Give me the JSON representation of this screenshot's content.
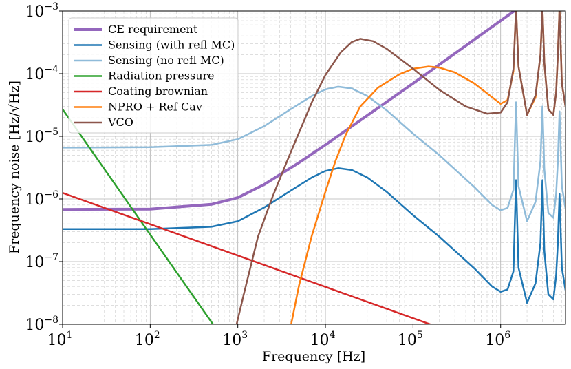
{
  "chart_data": {
    "type": "line",
    "xscale": "log",
    "yscale": "log",
    "xlabel": "Frequency [Hz]",
    "ylabel": "Frequency noise [Hz/√Hz]",
    "xlim": [
      10,
      5500000
    ],
    "ylim": [
      1e-08,
      0.001
    ],
    "grid": true,
    "legend_location": "upper left",
    "x_ticks": [
      {
        "base": "10",
        "exp": "1"
      },
      {
        "base": "10",
        "exp": "2"
      },
      {
        "base": "10",
        "exp": "3"
      },
      {
        "base": "10",
        "exp": "4"
      },
      {
        "base": "10",
        "exp": "5"
      },
      {
        "base": "10",
        "exp": "6"
      }
    ],
    "y_ticks": [
      {
        "base": "10",
        "exp": "−8"
      },
      {
        "base": "10",
        "exp": "−7"
      },
      {
        "base": "10",
        "exp": "−6"
      },
      {
        "base": "10",
        "exp": "−5"
      },
      {
        "base": "10",
        "exp": "−4"
      },
      {
        "base": "10",
        "exp": "−3"
      }
    ],
    "series": [
      {
        "name": "CE requirement",
        "color": "#9467bd",
        "linewidth": 4,
        "x": [
          10,
          100,
          500,
          1000,
          2000,
          5000,
          10000,
          100000,
          1000000,
          1500000
        ],
        "y": [
          6.8e-07,
          6.9e-07,
          8.2e-07,
          1.05e-06,
          1.7e-06,
          3.8e-06,
          7.3e-06,
          7e-05,
          0.0007,
          0.00105
        ]
      },
      {
        "name": "Sensing (with refl MC)",
        "color": "#1f77b4",
        "linewidth": 2.5,
        "x": [
          10,
          100,
          500,
          1000,
          2000,
          4000,
          7000,
          10000,
          14000,
          20000,
          30000,
          50000,
          100000,
          200000,
          500000,
          800000,
          1000000,
          1200000,
          1400000,
          1500000,
          1600000,
          2000000,
          2500000,
          2850000,
          3000000,
          3150000,
          3500000,
          4000000,
          4300000,
          4500000,
          4700000,
          5000000,
          5500000
        ],
        "y": [
          3.3e-07,
          3.3e-07,
          3.6e-07,
          4.4e-07,
          7.3e-07,
          1.35e-06,
          2.2e-06,
          2.8e-06,
          3.1e-06,
          2.9e-06,
          2.2e-06,
          1.3e-06,
          5.5e-07,
          2.5e-07,
          7.8e-08,
          4e-08,
          3.3e-08,
          3.6e-08,
          7e-08,
          2e-06,
          8e-08,
          2.2e-08,
          4.5e-08,
          2e-07,
          2e-06,
          1.5e-07,
          3e-08,
          2.5e-08,
          6e-08,
          2e-07,
          1.2e-06,
          8e-08,
          3.5e-08
        ]
      },
      {
        "name": "Sensing (no refl MC)",
        "color": "#8fbbd9",
        "linewidth": 2.5,
        "x": [
          10,
          100,
          500,
          1000,
          2000,
          4000,
          7000,
          10000,
          14000,
          20000,
          30000,
          50000,
          100000,
          200000,
          500000,
          800000,
          1000000,
          1200000,
          1400000,
          1500000,
          1600000,
          2000000,
          2500000,
          2850000,
          3000000,
          3150000,
          3500000,
          4000000,
          4300000,
          4500000,
          4700000,
          5000000,
          5500000
        ],
        "y": [
          6.6e-06,
          6.7e-06,
          7.3e-06,
          9e-06,
          1.45e-05,
          2.7e-05,
          4.4e-05,
          5.6e-05,
          6.2e-05,
          5.8e-05,
          4.4e-05,
          2.6e-05,
          1.1e-05,
          5e-06,
          1.55e-06,
          8e-07,
          6.6e-07,
          7.2e-07,
          1.4e-06,
          3.5e-05,
          1.6e-06,
          4.4e-07,
          9e-07,
          4e-06,
          3e-05,
          3e-06,
          6e-07,
          5e-07,
          1.2e-06,
          4e-06,
          2.5e-05,
          1.6e-06,
          7e-07
        ]
      },
      {
        "name": "Radiation pressure",
        "color": "#2ca02c",
        "linewidth": 2.5,
        "x": [
          10,
          100,
          540
        ],
        "y": [
          2.7e-05,
          2.7e-07,
          9.3e-09
        ]
      },
      {
        "name": "Coating brownian",
        "color": "#d62728",
        "linewidth": 2.5,
        "x": [
          10,
          100,
          1000,
          10000,
          100000,
          170000
        ],
        "y": [
          1.25e-06,
          3.95e-07,
          1.25e-07,
          3.95e-08,
          1.25e-08,
          9.6e-09
        ]
      },
      {
        "name": "NPRO + Ref Cav",
        "color": "#ff7f0e",
        "linewidth": 2.5,
        "x": [
          4000,
          5000,
          7000,
          10000,
          13000,
          17000,
          25000,
          40000,
          70000,
          100000,
          150000,
          200000,
          300000,
          500000,
          800000,
          1000000,
          1200000,
          1400000,
          1500000,
          1600000,
          2000000,
          2500000,
          2850000,
          3000000,
          3150000,
          3500000,
          4000000,
          4300000,
          4500000,
          4700000,
          5000000,
          5500000
        ],
        "y": [
          9e-09,
          4.2e-08,
          2.6e-07,
          1.3e-06,
          4e-06,
          1.05e-05,
          3e-05,
          6e-05,
          9.8e-05,
          0.00012,
          0.00013,
          0.000125,
          0.000105,
          7e-05,
          4.2e-05,
          3.3e-05,
          3.8e-05,
          0.00011,
          0.0011,
          0.00013,
          2.2e-05,
          4.2e-05,
          0.0002,
          0.0011,
          0.00015,
          2.7e-05,
          2.2e-05,
          5e-05,
          0.0002,
          0.0011,
          7e-05,
          3e-05
        ]
      },
      {
        "name": "VCO",
        "color": "#8c564b",
        "linewidth": 2.5,
        "x": [
          950,
          1200,
          1700,
          2500,
          4000,
          7000,
          10000,
          15000,
          20000,
          25000,
          35000,
          50000,
          100000,
          200000,
          400000,
          700000,
          1000000,
          1200000,
          1400000,
          1500000,
          1600000,
          2000000,
          2500000,
          2850000,
          3000000,
          3150000,
          3500000,
          4000000,
          4300000,
          4500000,
          4700000,
          5000000,
          5500000
        ],
        "y": [
          9e-09,
          3.5e-08,
          2.5e-07,
          1.1e-06,
          5.5e-06,
          3.5e-05,
          9.5e-05,
          0.00022,
          0.00032,
          0.00036,
          0.00033,
          0.00025,
          0.00012,
          5.5e-05,
          3e-05,
          2.3e-05,
          2.4e-05,
          3.5e-05,
          0.00012,
          0.0011,
          0.00013,
          2.2e-05,
          4.5e-05,
          0.0002,
          0.0011,
          0.00015,
          2.7e-05,
          2.2e-05,
          5e-05,
          0.0002,
          0.0011,
          7e-05,
          3e-05
        ]
      }
    ]
  }
}
